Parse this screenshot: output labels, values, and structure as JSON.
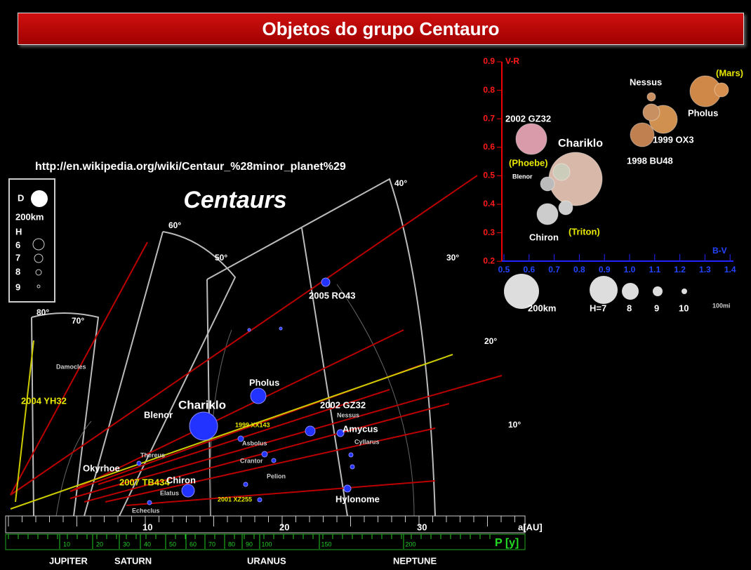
{
  "header": {
    "title": "Objetos do grupo Centauro"
  },
  "source_url": "http://en.wikipedia.org/wiki/Centaur_%28minor_planet%29",
  "main_diagram": {
    "title": "Centaurs",
    "legend": {
      "d_label": "D",
      "d_size": "200km",
      "h_label": "H",
      "h_values": [
        "6",
        "7",
        "8",
        "9"
      ]
    },
    "angle_labels": [
      "80°",
      "70°",
      "60°",
      "50°",
      "40°",
      "30°",
      "20°",
      "10°"
    ],
    "objects": [
      "Damocles",
      "2004 YH32",
      "Chariklo",
      "Pholus",
      "Blenor",
      "2002 GZ32",
      "Amycus",
      "2005 RO43",
      "Okyrhoe",
      "2007 TB434",
      "Chiron",
      "Hylonome",
      "Asbolus",
      "Crantor",
      "Thereus",
      "Pelion",
      "Cyllarus",
      "Nessus",
      "Elatus",
      "Echeclus",
      "1999 XX143",
      "2001 XZ255"
    ],
    "au_axis": {
      "ticks": [
        "10",
        "20",
        "30"
      ],
      "unit": "a[AU]"
    },
    "period_axis": {
      "ticks": [
        "10",
        "20",
        "30",
        "40",
        "50",
        "60",
        "70",
        "80",
        "90",
        "100",
        "150",
        "200"
      ],
      "unit": "P [y]"
    },
    "planets": [
      "JUPITER",
      "SATURN",
      "URANUS",
      "NEPTUNE"
    ]
  },
  "color_diagram": {
    "y_label": "V-R",
    "x_label": "B-V",
    "yticks": [
      "0.9",
      "0.8",
      "0.7",
      "0.6",
      "0.5",
      "0.4",
      "0.3",
      "0.2"
    ],
    "xticks": [
      "0.5",
      "0.6",
      "0.7",
      "0.8",
      "0.9",
      "1.0",
      "1.1",
      "1.2",
      "1.3",
      "1.4"
    ],
    "objects": [
      "2002 GZ32",
      "Chariklo",
      "(Phoebe)",
      "Blenor",
      "Chiron",
      "(Triton)",
      "Nessus",
      "1999 OX3",
      "1998 BU48",
      "(Mars)",
      "Pholus"
    ],
    "size_legend": [
      "200km",
      "H=7",
      "8",
      "9",
      "10",
      "100mi"
    ]
  }
}
